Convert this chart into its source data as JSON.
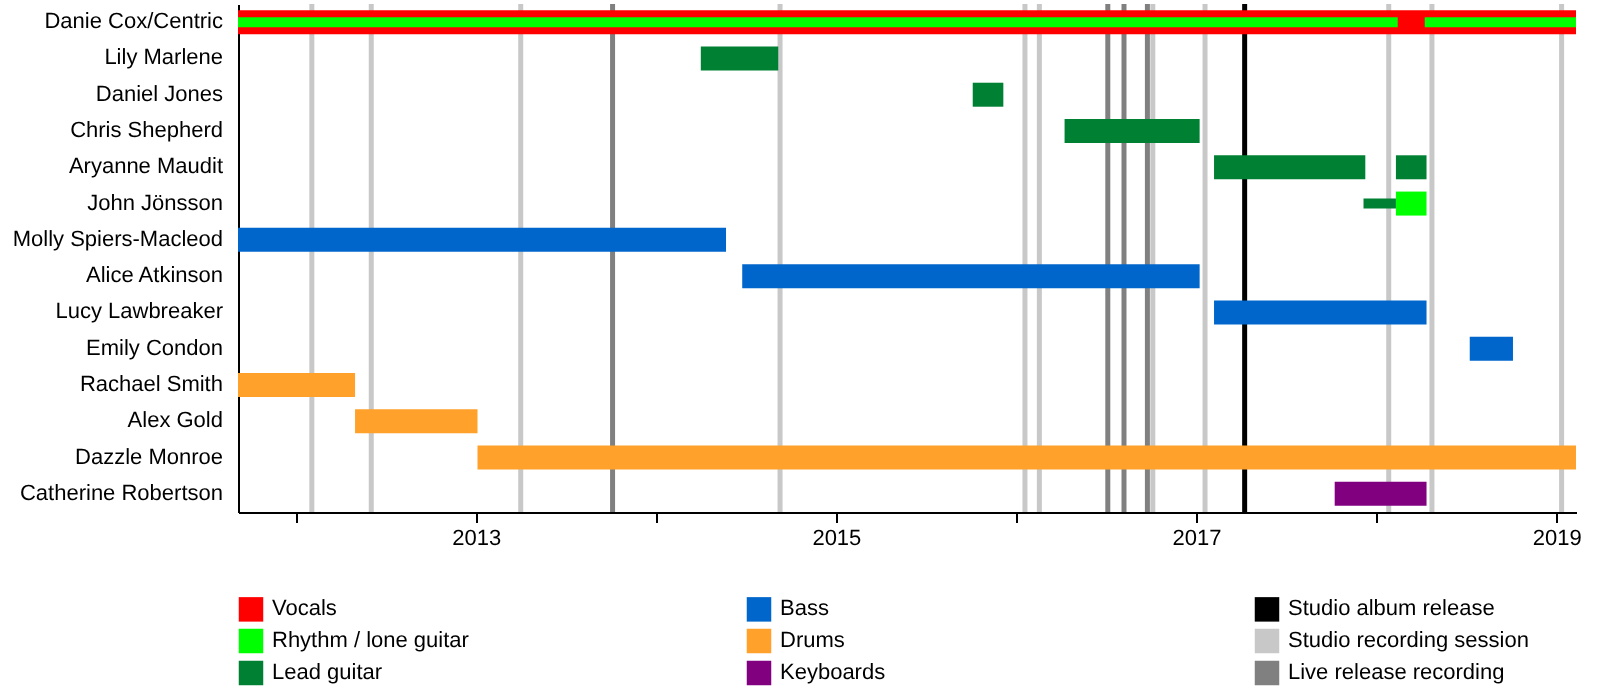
{
  "chart_data": {
    "type": "bar",
    "orientation": "horizontal",
    "categories": [
      "Danie Cox/Centric",
      "Lily Marlene",
      "Daniel Jones",
      "Chris Shepherd",
      "Aryanne Maudit",
      "John Jönsson",
      "Molly Spiers-Macleod",
      "Alice Atkinson",
      "Lucy Lawbreaker",
      "Emily Condon",
      "Rachael Smith",
      "Alex Gold",
      "Dazzle Monroe",
      "Catherine Robertson"
    ],
    "series": [
      {
        "name": "Vocals",
        "color": "#ff0000",
        "base": [
          2011.68,
          null,
          null,
          null,
          null,
          null,
          null,
          null,
          null,
          null,
          null,
          null,
          null,
          null
        ],
        "values": [
          7.43,
          null,
          null,
          null,
          null,
          null,
          null,
          null,
          null,
          null,
          null,
          null,
          null,
          null
        ]
      },
      {
        "name": "Rhythm / lone guitar",
        "color": "#00ff00",
        "base": [
          2011.68,
          null,
          null,
          null,
          null,
          2018.11,
          null,
          null,
          null,
          null,
          null,
          null,
          null,
          null
        ],
        "values": [
          6.44,
          null,
          null,
          null,
          null,
          0.17,
          null,
          null,
          null,
          null,
          null,
          null,
          null,
          null
        ]
      },
      {
        "name": "Lead guitar",
        "color": "#008033",
        "base": [
          null,
          2014.25,
          2015.76,
          2016.27,
          2017.1,
          2017.93,
          null,
          null,
          null,
          null,
          null,
          null,
          null,
          null
        ],
        "values": [
          null,
          0.43,
          0.17,
          0.75,
          0.84,
          0.18,
          null,
          null,
          null,
          null,
          null,
          null,
          null,
          null
        ]
      },
      {
        "name": "Bass",
        "color": "#0066cc",
        "base": [
          null,
          null,
          null,
          null,
          null,
          null,
          2011.68,
          2014.48,
          2017.1,
          2018.52,
          null,
          null,
          null,
          null
        ],
        "values": [
          null,
          null,
          null,
          null,
          null,
          null,
          2.71,
          2.54,
          1.18,
          0.24,
          null,
          null,
          null,
          null
        ]
      },
      {
        "name": "Drums",
        "color": "#ffa12a",
        "base": [
          null,
          null,
          null,
          null,
          null,
          null,
          null,
          null,
          null,
          null,
          2011.68,
          2012.33,
          2013.01,
          null
        ],
        "values": [
          null,
          null,
          null,
          null,
          null,
          null,
          null,
          null,
          null,
          null,
          0.65,
          0.68,
          6.1,
          null
        ]
      },
      {
        "name": "Keyboards",
        "color": "#800080",
        "base": [
          null,
          null,
          null,
          null,
          null,
          null,
          null,
          null,
          null,
          null,
          null,
          null,
          null,
          2017.77
        ],
        "values": [
          null,
          null,
          null,
          null,
          null,
          null,
          null,
          null,
          null,
          null,
          null,
          null,
          null,
          0.51
        ]
      },
      {
        "color": "#00ff00",
        "base": [
          2018.27,
          null,
          null,
          null,
          null,
          null,
          null,
          null,
          null,
          null,
          null,
          null,
          null,
          null
        ],
        "values": [
          0.84,
          null,
          null,
          null,
          null,
          null,
          null,
          null,
          null,
          null,
          null,
          null,
          null,
          null
        ]
      },
      {
        "color": "#008033",
        "base": [
          null,
          null,
          null,
          null,
          2018.11,
          null,
          null,
          null,
          null,
          null,
          null,
          null,
          null,
          null
        ],
        "values": [
          null,
          null,
          null,
          null,
          0.17,
          null,
          null,
          null,
          null,
          null,
          null,
          null,
          null,
          null
        ]
      }
    ],
    "ref_lines": [
      {
        "axis": "x",
        "value": 2017.27,
        "label": "Studio album release",
        "color": "#000000"
      },
      {
        "axis": "x",
        "value": 2012.09,
        "label": "Studio recording session",
        "color": "#c8c8c8"
      },
      {
        "axis": "x",
        "value": 2012.42,
        "color": "#c8c8c8"
      },
      {
        "axis": "x",
        "value": 2013.25,
        "color": "#c8c8c8"
      },
      {
        "axis": "x",
        "value": 2014.69,
        "color": "#c8c8c8"
      },
      {
        "axis": "x",
        "value": 2016.05,
        "color": "#c8c8c8"
      },
      {
        "axis": "x",
        "value": 2016.13,
        "color": "#c8c8c8"
      },
      {
        "axis": "x",
        "value": 2016.76,
        "color": "#c8c8c8"
      },
      {
        "axis": "x",
        "value": 2017.05,
        "color": "#c8c8c8"
      },
      {
        "axis": "x",
        "value": 2018.07,
        "color": "#c8c8c8"
      },
      {
        "axis": "x",
        "value": 2018.31,
        "color": "#c8c8c8"
      },
      {
        "axis": "x",
        "value": 2019.03,
        "color": "#c8c8c8"
      },
      {
        "axis": "x",
        "value": 2013.76,
        "label": "Live release recording",
        "color": "#808080"
      },
      {
        "axis": "x",
        "value": 2016.51,
        "color": "#808080"
      },
      {
        "axis": "x",
        "value": 2016.6,
        "color": "#808080"
      },
      {
        "axis": "x",
        "value": 2016.73,
        "color": "#808080"
      }
    ],
    "xlim": [
      2011.68,
      2019.11
    ],
    "xticks": [
      {
        "value": 2012,
        "label": null
      },
      2013,
      {
        "value": 2014,
        "label": null
      },
      2015,
      {
        "value": 2016,
        "label": null
      },
      2017,
      {
        "value": 2018,
        "label": null
      },
      2019
    ],
    "legend": "bottom",
    "grid": false
  }
}
